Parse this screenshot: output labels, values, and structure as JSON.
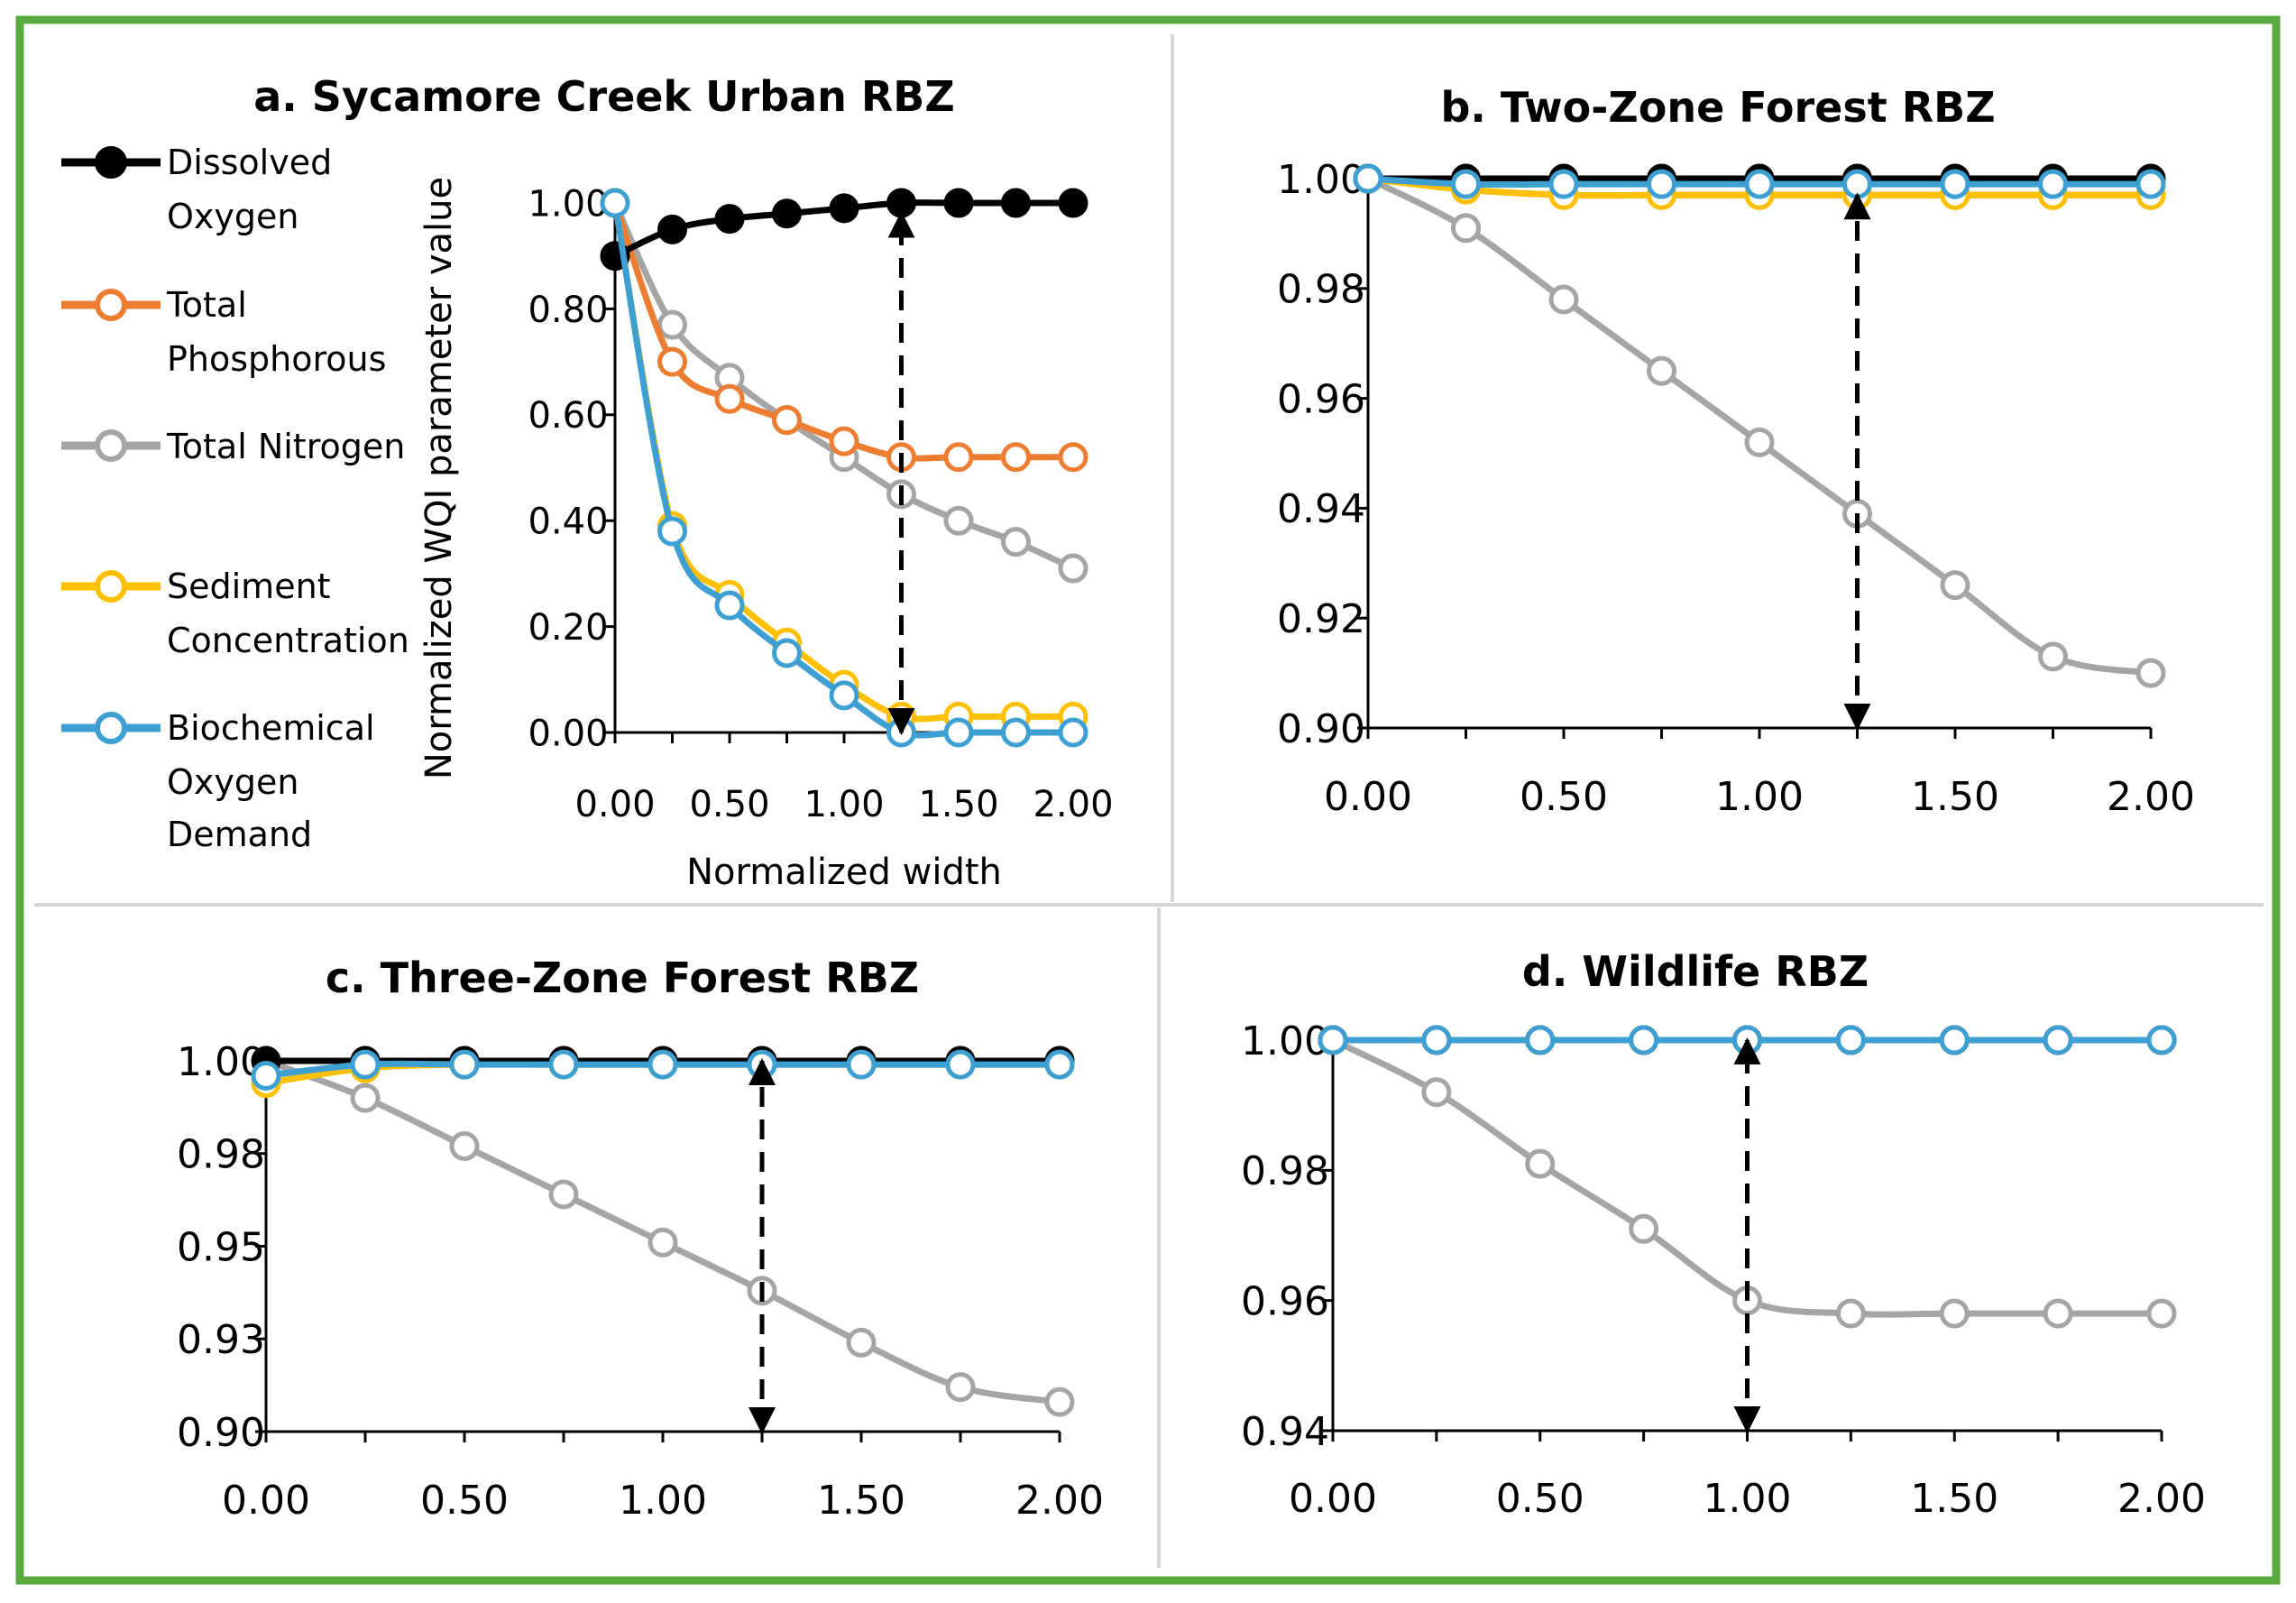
{
  "figure": {
    "legend": [
      {
        "label_lines": [
          "Dissolved",
          "Oxygen"
        ],
        "color": "#000000"
      },
      {
        "label_lines": [
          "Total",
          "Phosphorous"
        ],
        "color": "#ED7D31"
      },
      {
        "label_lines": [
          "Total Nitrogen"
        ],
        "color": "#A5A5A5"
      },
      {
        "label_lines": [
          "Sediment",
          "Concentration"
        ],
        "color": "#FFC000"
      },
      {
        "label_lines": [
          "Biochemical",
          "Oxygen",
          "Demand"
        ],
        "color": "#3E9FD3"
      }
    ],
    "colors": {
      "border": "#5BAA3F",
      "divider": "#D6D6D6",
      "axis": "#000000"
    }
  },
  "chart_data": [
    {
      "type": "line",
      "title": "a. Sycamore Creek Urban RBZ",
      "xlabel": "Normalized width",
      "ylabel": "Normalized WQI parameter value",
      "xlim": [
        0,
        2
      ],
      "ylim": [
        0,
        1
      ],
      "xticks": [
        "0.00",
        "0.50",
        "1.00",
        "1.50",
        "2.00"
      ],
      "yticks": [
        "0.00",
        "0.20",
        "0.40",
        "0.60",
        "0.80",
        "1.00"
      ],
      "x": [
        0,
        0.25,
        0.5,
        0.75,
        1.0,
        1.25,
        1.5,
        1.75,
        2.0
      ],
      "series": [
        {
          "name": "Dissolved Oxygen",
          "color": "#000000",
          "filled": true,
          "values": [
            0.9,
            0.95,
            0.97,
            0.98,
            0.99,
            1.0,
            1.0,
            1.0,
            1.0
          ]
        },
        {
          "name": "Total Phosphorous",
          "color": "#ED7D31",
          "filled": false,
          "values": [
            1.0,
            0.7,
            0.63,
            0.59,
            0.55,
            0.52,
            0.52,
            0.52,
            0.52
          ]
        },
        {
          "name": "Total Nitrogen",
          "color": "#A5A5A5",
          "filled": false,
          "values": [
            1.0,
            0.77,
            0.67,
            0.59,
            0.52,
            0.45,
            0.4,
            0.36,
            0.31
          ]
        },
        {
          "name": "Sediment Concentration",
          "color": "#FFC000",
          "filled": false,
          "values": [
            1.0,
            0.39,
            0.26,
            0.17,
            0.09,
            0.03,
            0.03,
            0.03,
            0.03
          ]
        },
        {
          "name": "Biochemical Oxygen Demand",
          "color": "#3E9FD3",
          "filled": false,
          "values": [
            1.0,
            0.38,
            0.24,
            0.15,
            0.07,
            0.0,
            0.0,
            0.0,
            0.0
          ]
        }
      ],
      "arrow_x": 1.25,
      "arrow_range": [
        0.0,
        0.98
      ]
    },
    {
      "type": "line",
      "title": "b. Two-Zone Forest RBZ",
      "xlabel": "",
      "ylabel": "",
      "xlim": [
        0,
        2
      ],
      "ylim": [
        0.9,
        1.0
      ],
      "xticks": [
        "0.00",
        "0.50",
        "1.00",
        "1.50",
        "2.00"
      ],
      "yticks": [
        "0.90",
        "0.92",
        "0.94",
        "0.96",
        "0.98",
        "1.00"
      ],
      "x": [
        0,
        0.25,
        0.5,
        0.75,
        1.0,
        1.25,
        1.5,
        1.75,
        2.0
      ],
      "series": [
        {
          "name": "Dissolved Oxygen",
          "color": "#000000",
          "filled": true,
          "values": [
            1.0,
            1.0,
            1.0,
            1.0,
            1.0,
            1.0,
            1.0,
            1.0,
            1.0
          ]
        },
        {
          "name": "Total Phosphorous",
          "color": "#ED7D31",
          "filled": false,
          "values": [
            1.0,
            0.998,
            0.997,
            0.997,
            0.997,
            0.997,
            0.997,
            0.997,
            0.997
          ]
        },
        {
          "name": "Total Nitrogen",
          "color": "#A5A5A5",
          "filled": false,
          "values": [
            1.0,
            0.991,
            0.978,
            0.965,
            0.952,
            0.939,
            0.926,
            0.913,
            0.91
          ]
        },
        {
          "name": "Sediment Concentration",
          "color": "#FFC000",
          "filled": false,
          "values": [
            1.0,
            0.998,
            0.997,
            0.997,
            0.997,
            0.997,
            0.997,
            0.997,
            0.997
          ]
        },
        {
          "name": "Biochemical Oxygen Demand",
          "color": "#3E9FD3",
          "filled": false,
          "values": [
            1.0,
            0.999,
            0.999,
            0.999,
            0.999,
            0.999,
            0.999,
            0.999,
            0.999
          ]
        }
      ],
      "arrow_x": 1.25,
      "arrow_range": [
        0.9,
        0.997
      ]
    },
    {
      "type": "line",
      "title": "c. Three-Zone Forest RBZ",
      "xlabel": "",
      "ylabel": "",
      "xlim": [
        0,
        2
      ],
      "ylim": [
        0.9,
        1.0
      ],
      "xticks": [
        "0.00",
        "0.50",
        "1.00",
        "1.50",
        "2.00"
      ],
      "yticks": [
        "0.90",
        "0.93",
        "0.95",
        "0.98",
        "1.00"
      ],
      "x": [
        0,
        0.25,
        0.5,
        0.75,
        1.0,
        1.25,
        1.5,
        1.75,
        2.0
      ],
      "series": [
        {
          "name": "Dissolved Oxygen",
          "color": "#000000",
          "filled": true,
          "values": [
            1.0,
            1.0,
            1.0,
            1.0,
            1.0,
            1.0,
            1.0,
            1.0,
            1.0
          ]
        },
        {
          "name": "Total Phosphorous",
          "color": "#ED7D31",
          "filled": false,
          "values": [
            1.0,
            1.0,
            1.0,
            1.0,
            1.0,
            1.0,
            1.0,
            1.0,
            1.0
          ]
        },
        {
          "name": "Total Nitrogen",
          "color": "#A5A5A5",
          "filled": false,
          "values": [
            1.0,
            0.99,
            0.977,
            0.964,
            0.951,
            0.938,
            0.924,
            0.912,
            0.908
          ]
        },
        {
          "name": "Sediment Concentration",
          "color": "#FFC000",
          "filled": false,
          "values": [
            0.994,
            0.998,
            0.999,
            0.999,
            0.999,
            0.999,
            0.999,
            0.999,
            0.999
          ]
        },
        {
          "name": "Biochemical Oxygen Demand",
          "color": "#3E9FD3",
          "filled": false,
          "values": [
            0.996,
            0.999,
            0.999,
            0.999,
            0.999,
            0.999,
            0.999,
            0.999,
            0.999
          ]
        }
      ],
      "arrow_x": 1.25,
      "arrow_range": [
        0.9,
        1.0
      ]
    },
    {
      "type": "line",
      "title": "d. Wildlife RBZ",
      "xlabel": "",
      "ylabel": "",
      "xlim": [
        0,
        2
      ],
      "ylim": [
        0.94,
        1.0
      ],
      "xticks": [
        "0.00",
        "0.50",
        "1.00",
        "1.50",
        "2.00"
      ],
      "yticks": [
        "0.94",
        "0.96",
        "0.98",
        "1.00"
      ],
      "x": [
        0,
        0.25,
        0.5,
        0.75,
        1.0,
        1.25,
        1.5,
        1.75,
        2.0
      ],
      "series": [
        {
          "name": "Dissolved Oxygen",
          "color": "#000000",
          "filled": true,
          "values": [
            1.0,
            1.0,
            1.0,
            1.0,
            1.0,
            1.0,
            1.0,
            1.0,
            1.0
          ]
        },
        {
          "name": "Total Phosphorous",
          "color": "#ED7D31",
          "filled": false,
          "values": [
            1.0,
            1.0,
            1.0,
            1.0,
            1.0,
            1.0,
            1.0,
            1.0,
            1.0
          ]
        },
        {
          "name": "Total Nitrogen",
          "color": "#A5A5A5",
          "filled": false,
          "values": [
            1.0,
            0.992,
            0.981,
            0.971,
            0.96,
            0.958,
            0.958,
            0.958,
            0.958
          ]
        },
        {
          "name": "Sediment Concentration",
          "color": "#FFC000",
          "filled": false,
          "values": [
            1.0,
            1.0,
            1.0,
            1.0,
            1.0,
            1.0,
            1.0,
            1.0,
            1.0
          ]
        },
        {
          "name": "Biochemical Oxygen Demand",
          "color": "#3E9FD3",
          "filled": false,
          "values": [
            1.0,
            1.0,
            1.0,
            1.0,
            1.0,
            1.0,
            1.0,
            1.0,
            1.0
          ]
        }
      ],
      "arrow_x": 1.0,
      "arrow_range": [
        0.94,
        1.0
      ]
    }
  ]
}
